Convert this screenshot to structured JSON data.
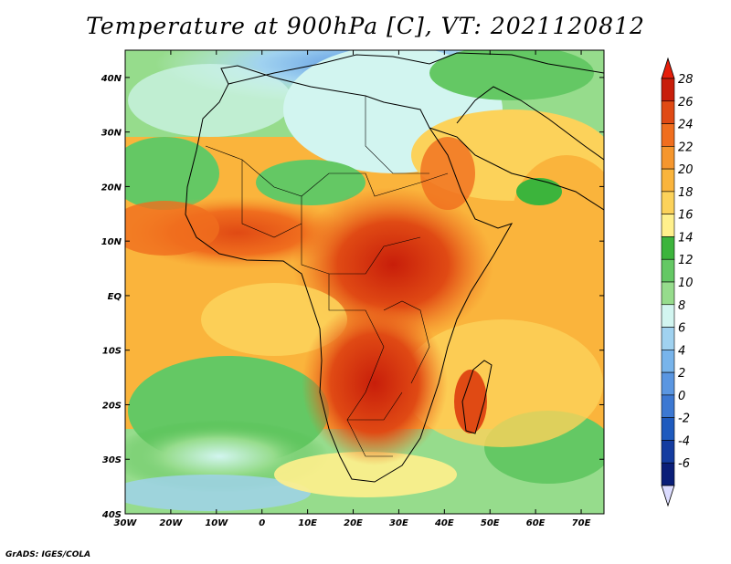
{
  "title": "Temperature at 900hPa [C], VT: 2021120812",
  "credit": "GrADS: IGES/COLA",
  "map": {
    "lon_range": [
      -30,
      75
    ],
    "lat_range": [
      -40,
      45
    ],
    "lon_ticks": [
      {
        "value": -30,
        "label": "30W"
      },
      {
        "value": -20,
        "label": "20W"
      },
      {
        "value": -10,
        "label": "10W"
      },
      {
        "value": 0,
        "label": "0"
      },
      {
        "value": 10,
        "label": "10E"
      },
      {
        "value": 20,
        "label": "20E"
      },
      {
        "value": 30,
        "label": "30E"
      },
      {
        "value": 40,
        "label": "40E"
      },
      {
        "value": 50,
        "label": "50E"
      },
      {
        "value": 60,
        "label": "60E"
      },
      {
        "value": 70,
        "label": "70E"
      }
    ],
    "lat_ticks": [
      {
        "value": 40,
        "label": "40N"
      },
      {
        "value": 30,
        "label": "30N"
      },
      {
        "value": 20,
        "label": "20N"
      },
      {
        "value": 10,
        "label": "10N"
      },
      {
        "value": 0,
        "label": "EQ"
      },
      {
        "value": -10,
        "label": "10S"
      },
      {
        "value": -20,
        "label": "20S"
      },
      {
        "value": -30,
        "label": "30S"
      },
      {
        "value": -40,
        "label": "40S"
      }
    ]
  },
  "colorbar": {
    "labels": [
      "28",
      "26",
      "24",
      "22",
      "20",
      "18",
      "16",
      "14",
      "12",
      "10",
      "8",
      "6",
      "4",
      "2",
      "0",
      "-2",
      "-4",
      "-6"
    ],
    "colors": [
      "#c81e0a",
      "#e04a14",
      "#f06e1e",
      "#f5962d",
      "#fab43c",
      "#fcd25a",
      "#fff08c",
      "#3cb43c",
      "#64c864",
      "#96dc8c",
      "#d2f5f0",
      "#a0d2f0",
      "#78b4eb",
      "#5a96e1",
      "#3c78d2",
      "#1e5abe",
      "#143ca0",
      "#0a1e78"
    ],
    "top_color": "#e61e0a",
    "bottom_color": "#dcdcff"
  }
}
